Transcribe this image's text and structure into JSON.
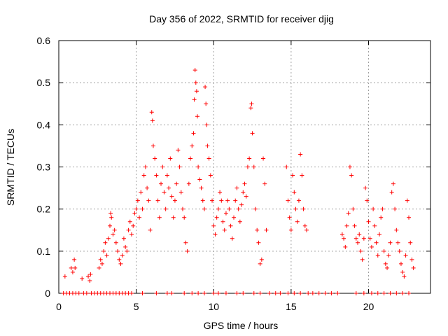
{
  "chart_data": {
    "type": "scatter",
    "title": "Day 356 of 2022, SRMTID for receiver djig",
    "xlabel": "GPS time / hours",
    "ylabel": "SRMTID / TECUs",
    "xlim": [
      0,
      24
    ],
    "ylim": [
      0,
      0.6
    ],
    "xticks": [
      0,
      5,
      10,
      15,
      20
    ],
    "yticks": [
      0,
      0.1,
      0.2,
      0.3,
      0.4,
      0.5,
      0.6
    ],
    "xtick_labels": [
      "0",
      "5",
      "10",
      "15",
      "20"
    ],
    "ytick_labels": [
      "0",
      "0.1",
      "0.2",
      "0.3",
      "0.4",
      "0.5",
      "0.6"
    ],
    "grid": true,
    "marker": "+",
    "color": "#ff0000",
    "series": [
      {
        "name": "SRMTID",
        "points": [
          [
            0.4,
            0.04
          ],
          [
            0.8,
            0.06
          ],
          [
            0.9,
            0.05
          ],
          [
            1.0,
            0.08
          ],
          [
            1.05,
            0.06
          ],
          [
            1.5,
            0.035
          ],
          [
            1.9,
            0.04
          ],
          [
            2.0,
            0.03
          ],
          [
            2.05,
            0.045
          ],
          [
            2.6,
            0.06
          ],
          [
            2.7,
            0.08
          ],
          [
            2.8,
            0.07
          ],
          [
            2.9,
            0.1
          ],
          [
            3.0,
            0.12
          ],
          [
            3.1,
            0.09
          ],
          [
            3.2,
            0.13
          ],
          [
            3.3,
            0.16
          ],
          [
            3.35,
            0.19
          ],
          [
            3.4,
            0.18
          ],
          [
            3.5,
            0.14
          ],
          [
            3.6,
            0.15
          ],
          [
            3.7,
            0.12
          ],
          [
            3.8,
            0.1
          ],
          [
            3.9,
            0.08
          ],
          [
            4.0,
            0.07
          ],
          [
            4.1,
            0.09
          ],
          [
            4.2,
            0.13
          ],
          [
            4.3,
            0.11
          ],
          [
            4.4,
            0.1
          ],
          [
            4.5,
            0.15
          ],
          [
            4.6,
            0.17
          ],
          [
            4.7,
            0.14
          ],
          [
            4.8,
            0.16
          ],
          [
            4.9,
            0.19
          ],
          [
            5.0,
            0.2
          ],
          [
            5.1,
            0.22
          ],
          [
            5.2,
            0.18
          ],
          [
            5.3,
            0.24
          ],
          [
            5.4,
            0.2
          ],
          [
            5.5,
            0.28
          ],
          [
            5.6,
            0.3
          ],
          [
            5.7,
            0.25
          ],
          [
            5.8,
            0.22
          ],
          [
            5.9,
            0.15
          ],
          [
            6.0,
            0.43
          ],
          [
            6.05,
            0.41
          ],
          [
            6.1,
            0.35
          ],
          [
            6.2,
            0.32
          ],
          [
            6.3,
            0.28
          ],
          [
            6.4,
            0.22
          ],
          [
            6.5,
            0.18
          ],
          [
            6.6,
            0.26
          ],
          [
            6.7,
            0.3
          ],
          [
            6.8,
            0.24
          ],
          [
            6.9,
            0.2
          ],
          [
            7.0,
            0.28
          ],
          [
            7.1,
            0.25
          ],
          [
            7.2,
            0.32
          ],
          [
            7.3,
            0.23
          ],
          [
            7.4,
            0.18
          ],
          [
            7.5,
            0.22
          ],
          [
            7.6,
            0.26
          ],
          [
            7.7,
            0.34
          ],
          [
            7.8,
            0.3
          ],
          [
            7.9,
            0.24
          ],
          [
            8.0,
            0.2
          ],
          [
            8.1,
            0.18
          ],
          [
            8.2,
            0.12
          ],
          [
            8.3,
            0.1
          ],
          [
            8.4,
            0.26
          ],
          [
            8.5,
            0.32
          ],
          [
            8.6,
            0.35
          ],
          [
            8.7,
            0.38
          ],
          [
            8.75,
            0.46
          ],
          [
            8.8,
            0.53
          ],
          [
            8.85,
            0.5
          ],
          [
            8.9,
            0.48
          ],
          [
            8.95,
            0.42
          ],
          [
            9.0,
            0.3
          ],
          [
            9.1,
            0.27
          ],
          [
            9.2,
            0.25
          ],
          [
            9.3,
            0.22
          ],
          [
            9.4,
            0.2
          ],
          [
            9.45,
            0.49
          ],
          [
            9.5,
            0.45
          ],
          [
            9.55,
            0.4
          ],
          [
            9.6,
            0.35
          ],
          [
            9.7,
            0.32
          ],
          [
            9.8,
            0.28
          ],
          [
            9.9,
            0.22
          ],
          [
            10.0,
            0.16
          ],
          [
            10.1,
            0.14
          ],
          [
            10.2,
            0.18
          ],
          [
            10.3,
            0.2
          ],
          [
            10.4,
            0.24
          ],
          [
            10.5,
            0.22
          ],
          [
            10.6,
            0.17
          ],
          [
            10.7,
            0.15
          ],
          [
            10.8,
            0.19
          ],
          [
            10.9,
            0.22
          ],
          [
            11.0,
            0.2
          ],
          [
            11.1,
            0.16
          ],
          [
            11.2,
            0.13
          ],
          [
            11.3,
            0.18
          ],
          [
            11.4,
            0.22
          ],
          [
            11.5,
            0.25
          ],
          [
            11.6,
            0.2
          ],
          [
            11.7,
            0.17
          ],
          [
            11.8,
            0.21
          ],
          [
            11.9,
            0.24
          ],
          [
            12.0,
            0.26
          ],
          [
            12.1,
            0.23
          ],
          [
            12.2,
            0.3
          ],
          [
            12.3,
            0.32
          ],
          [
            12.4,
            0.44
          ],
          [
            12.45,
            0.45
          ],
          [
            12.5,
            0.38
          ],
          [
            12.6,
            0.3
          ],
          [
            12.7,
            0.2
          ],
          [
            12.8,
            0.15
          ],
          [
            12.9,
            0.12
          ],
          [
            13.0,
            0.07
          ],
          [
            13.1,
            0.08
          ],
          [
            13.2,
            0.32
          ],
          [
            13.3,
            0.26
          ],
          [
            13.4,
            0.15
          ],
          [
            14.7,
            0.3
          ],
          [
            14.8,
            0.22
          ],
          [
            14.9,
            0.18
          ],
          [
            15.0,
            0.15
          ],
          [
            15.1,
            0.28
          ],
          [
            15.2,
            0.24
          ],
          [
            15.3,
            0.2
          ],
          [
            15.4,
            0.17
          ],
          [
            15.5,
            0.22
          ],
          [
            15.6,
            0.33
          ],
          [
            15.7,
            0.28
          ],
          [
            15.8,
            0.2
          ],
          [
            15.9,
            0.16
          ],
          [
            16.0,
            0.15
          ],
          [
            18.3,
            0.14
          ],
          [
            18.4,
            0.13
          ],
          [
            18.5,
            0.11
          ],
          [
            18.6,
            0.16
          ],
          [
            18.7,
            0.19
          ],
          [
            18.8,
            0.3
          ],
          [
            18.9,
            0.28
          ],
          [
            19.0,
            0.2
          ],
          [
            19.1,
            0.16
          ],
          [
            19.2,
            0.13
          ],
          [
            19.3,
            0.12
          ],
          [
            19.4,
            0.14
          ],
          [
            19.5,
            0.1
          ],
          [
            19.6,
            0.08
          ],
          [
            19.7,
            0.13
          ],
          [
            19.8,
            0.25
          ],
          [
            19.9,
            0.22
          ],
          [
            20.0,
            0.17
          ],
          [
            20.1,
            0.13
          ],
          [
            20.2,
            0.11
          ],
          [
            20.3,
            0.2
          ],
          [
            20.4,
            0.16
          ],
          [
            20.5,
            0.12
          ],
          [
            20.6,
            0.09
          ],
          [
            20.7,
            0.14
          ],
          [
            20.8,
            0.18
          ],
          [
            20.9,
            0.2
          ],
          [
            21.0,
            0.1
          ],
          [
            21.1,
            0.07
          ],
          [
            21.2,
            0.06
          ],
          [
            21.3,
            0.09
          ],
          [
            21.4,
            0.12
          ],
          [
            21.5,
            0.24
          ],
          [
            21.6,
            0.26
          ],
          [
            21.7,
            0.2
          ],
          [
            21.8,
            0.15
          ],
          [
            21.9,
            0.12
          ],
          [
            22.0,
            0.1
          ],
          [
            22.1,
            0.07
          ],
          [
            22.2,
            0.05
          ],
          [
            22.3,
            0.04
          ],
          [
            22.4,
            0.09
          ],
          [
            22.5,
            0.22
          ],
          [
            22.6,
            0.18
          ],
          [
            22.7,
            0.12
          ],
          [
            22.8,
            0.08
          ],
          [
            22.9,
            0.06
          ],
          [
            0.3,
            0
          ],
          [
            0.5,
            0
          ],
          [
            0.7,
            0
          ],
          [
            0.9,
            0
          ],
          [
            1.1,
            0
          ],
          [
            1.3,
            0
          ],
          [
            1.6,
            0
          ],
          [
            1.8,
            0
          ],
          [
            2.1,
            0
          ],
          [
            2.3,
            0
          ],
          [
            2.5,
            0
          ],
          [
            2.7,
            0
          ],
          [
            2.9,
            0
          ],
          [
            3.1,
            0
          ],
          [
            3.3,
            0
          ],
          [
            3.5,
            0
          ],
          [
            3.7,
            0
          ],
          [
            3.9,
            0
          ],
          [
            4.1,
            0
          ],
          [
            4.3,
            0
          ],
          [
            4.5,
            0
          ],
          [
            4.7,
            0
          ],
          [
            5.4,
            0
          ],
          [
            6.3,
            0
          ],
          [
            7.0,
            0
          ],
          [
            7.3,
            0
          ],
          [
            8.1,
            0
          ],
          [
            8.6,
            0
          ],
          [
            9.0,
            0
          ],
          [
            9.4,
            0
          ],
          [
            10.0,
            0
          ],
          [
            10.3,
            0
          ],
          [
            10.8,
            0
          ],
          [
            11.5,
            0
          ],
          [
            11.9,
            0
          ],
          [
            12.6,
            0
          ],
          [
            13.0,
            0
          ],
          [
            13.6,
            0
          ],
          [
            14.0,
            0
          ],
          [
            14.3,
            0
          ],
          [
            14.8,
            0
          ],
          [
            15.2,
            0
          ],
          [
            15.6,
            0
          ],
          [
            16.1,
            0
          ],
          [
            16.4,
            0
          ],
          [
            16.8,
            0
          ],
          [
            17.2,
            0
          ],
          [
            17.6,
            0
          ],
          [
            18.0,
            0
          ],
          [
            19.2,
            0
          ],
          [
            19.7,
            0
          ],
          [
            20.2,
            0
          ],
          [
            20.6,
            0
          ],
          [
            21.0,
            0
          ],
          [
            21.4,
            0
          ],
          [
            21.8,
            0
          ],
          [
            22.2,
            0
          ],
          [
            22.6,
            0
          ]
        ]
      }
    ]
  }
}
